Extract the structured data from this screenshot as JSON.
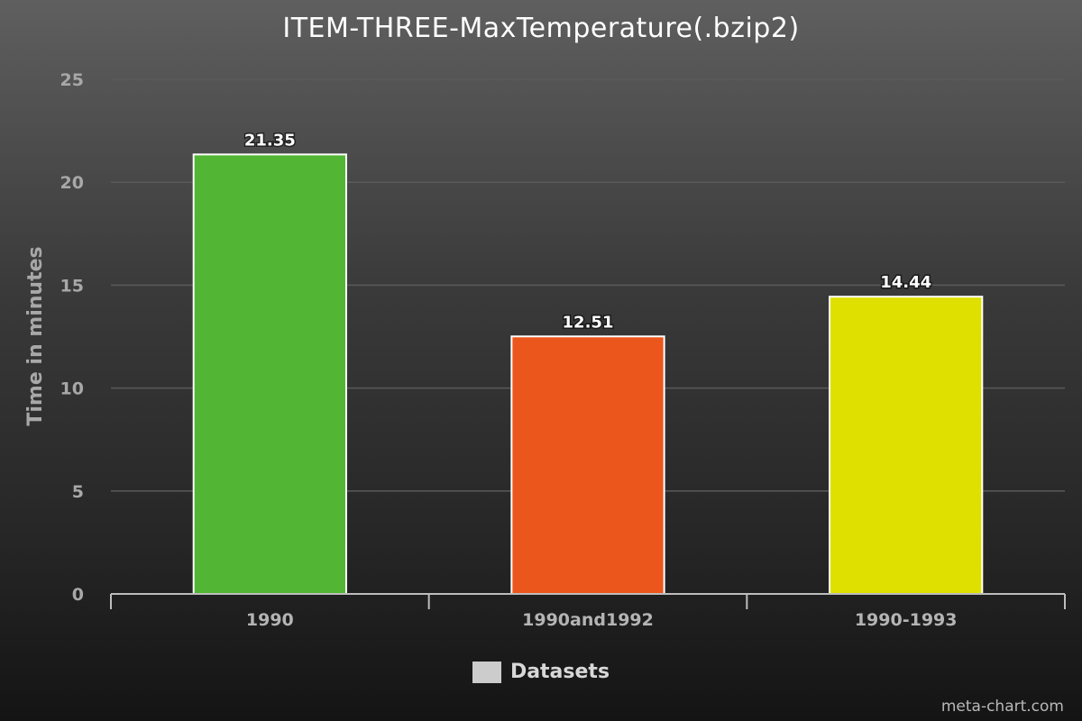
{
  "chart_data": {
    "type": "bar",
    "title": "ITEM-THREE-MaxTemperature(.bzip2)",
    "xlabel": "",
    "ylabel": "Time in minutes",
    "categories": [
      "1990",
      "1990and1992",
      "1990-1993"
    ],
    "values": [
      21.35,
      12.51,
      14.44
    ],
    "data_labels": [
      "21.35",
      "12.51",
      "14.44"
    ],
    "colors": [
      "#52b533",
      "#eb561d",
      "#dfe000"
    ],
    "ylim": [
      0,
      25
    ],
    "yticks": [
      0,
      5,
      10,
      15,
      20,
      25
    ],
    "grid": true,
    "legend": {
      "entries": [
        "Datasets"
      ],
      "placement": "bottom"
    }
  },
  "credit": "meta-chart.com"
}
